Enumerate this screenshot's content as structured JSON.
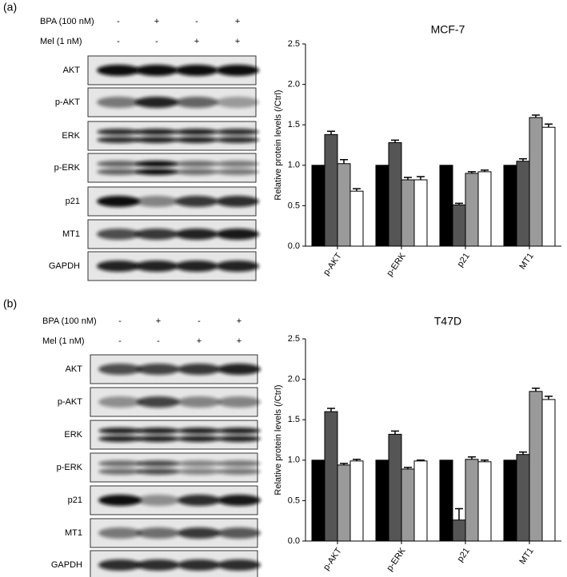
{
  "panel_labels": [
    "(a)",
    "(b)"
  ],
  "blots": [
    {
      "treatments": [
        {
          "name": "BPA  (100 nM)",
          "signs": [
            "-",
            "+",
            "-",
            "+"
          ]
        },
        {
          "name": "Mel (1 nM)",
          "signs": [
            "-",
            "-",
            "+",
            "+"
          ]
        }
      ],
      "rows": [
        "AKT",
        "p-AKT",
        "ERK",
        "p-ERK",
        "p21",
        "MT1",
        "GAPDH"
      ]
    },
    {
      "treatments": [
        {
          "name": "BPA  (100 nM)",
          "signs": [
            "-",
            "+",
            "-",
            "+"
          ]
        },
        {
          "name": "Mel (1 nM)",
          "signs": [
            "-",
            "-",
            "+",
            "+"
          ]
        }
      ],
      "rows": [
        "AKT",
        "p-AKT",
        "ERK",
        "p-ERK",
        "p21",
        "MT1",
        "GAPDH"
      ]
    }
  ],
  "chart_data": [
    {
      "type": "bar",
      "title": "MCF-7",
      "y_label": "Relative protein levels (/Ctrl)",
      "categories": [
        "p-AKT",
        "p-ERK",
        "p21",
        "MT1"
      ],
      "series": [
        {
          "color": "#000000",
          "values": [
            1,
            1,
            1,
            1
          ]
        },
        {
          "color": "#555555",
          "values": [
            1.38,
            1.28,
            0.51,
            1.05
          ],
          "errors": [
            0.04,
            0.03,
            0.02,
            0.03
          ]
        },
        {
          "color": "#9a9a9a",
          "values": [
            1.02,
            0.82,
            0.9,
            1.59
          ],
          "errors": [
            0.05,
            0.03,
            0.02,
            0.03
          ]
        },
        {
          "color": "#ffffff",
          "values": [
            0.68,
            0.82,
            0.92,
            1.47
          ],
          "errors": [
            0.03,
            0.04,
            0.02,
            0.04
          ]
        }
      ],
      "ylim": [
        0,
        2.5
      ],
      "yticks": [
        {
          "value": 0,
          "label": "0.0"
        },
        0.5,
        {
          "value": 1,
          "label": "1.0"
        },
        1.5,
        {
          "value": 2,
          "label": "2.0"
        },
        2.5
      ]
    },
    {
      "type": "bar",
      "title": "T47D",
      "y_label": "Relative protein levels (/Ctrl)",
      "categories": [
        "p-AKT",
        "p-ERK",
        "p21",
        "MT1"
      ],
      "series": [
        {
          "color": "#000000",
          "values": [
            1,
            1,
            1,
            1
          ]
        },
        {
          "color": "#555555",
          "values": [
            1.6,
            1.32,
            0.26,
            1.07
          ],
          "errors": [
            0.04,
            0.04,
            0.14,
            0.03
          ]
        },
        {
          "color": "#9a9a9a",
          "values": [
            0.94,
            0.89,
            1.01,
            1.85
          ],
          "errors": [
            0.02,
            0.02,
            0.03,
            0.04
          ]
        },
        {
          "color": "#ffffff",
          "values": [
            0.99,
            0.99,
            0.98,
            1.75
          ],
          "errors": [
            0.02,
            0.01,
            0.02,
            0.04
          ]
        }
      ],
      "ylim": [
        0,
        2.5
      ],
      "yticks": [
        {
          "value": 0,
          "label": "0.0"
        },
        0.5,
        {
          "value": 1,
          "label": "1.0"
        },
        1.5,
        {
          "value": 2,
          "label": "2.0"
        },
        2.5
      ]
    }
  ]
}
